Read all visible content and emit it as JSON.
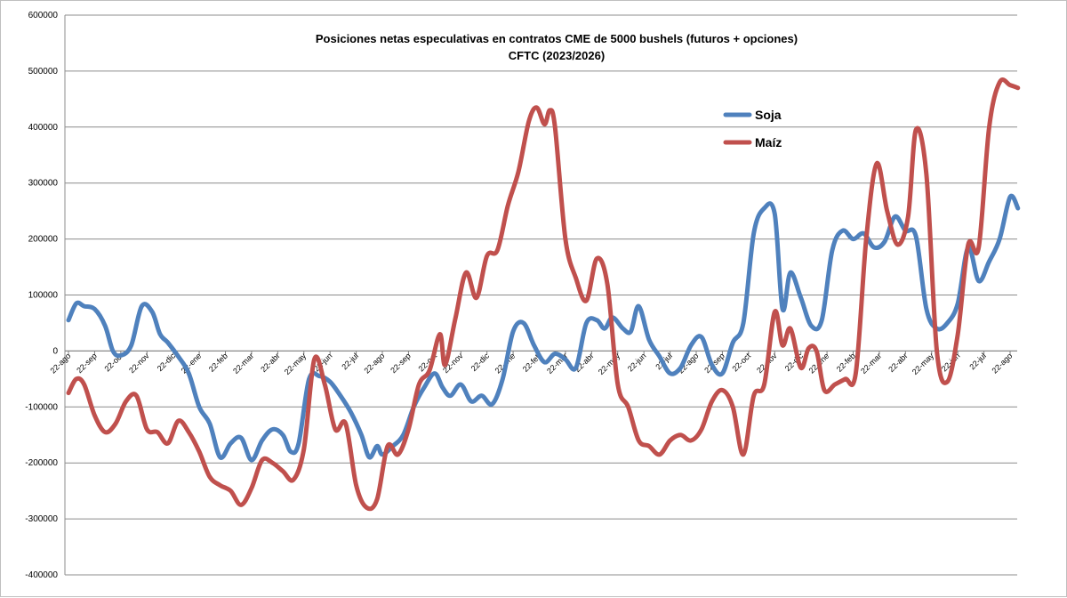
{
  "chart_data": {
    "type": "line",
    "title": "Posiciones netas especulativas en contratos CME de 5000 bushels (futuros + opciones)",
    "subtitle": "CFTC (2023/2026)",
    "xlabel": "",
    "ylabel": "",
    "ylim": [
      -400000,
      600000
    ],
    "yticks": [
      600000,
      500000,
      400000,
      300000,
      200000,
      100000,
      0,
      -100000,
      -200000,
      -300000,
      -400000
    ],
    "ytick_labels": [
      "600000",
      "500000",
      "400000",
      "300000",
      "200000",
      "100000",
      "0",
      "-100000",
      "-200000",
      "-300000",
      "-400000"
    ],
    "grid": true,
    "legend_position": "top-right",
    "x_tick_labels": [
      "22-ago",
      "22-sep",
      "22-oct",
      "22-nov",
      "22-dic",
      "22-ene",
      "22-feb",
      "22-mar",
      "22-abr",
      "22-may",
      "22-jun",
      "22-jul",
      "22-ago",
      "22-sep",
      "22-oct",
      "22-nov",
      "22-dic",
      "22-ene",
      "22-feb",
      "22-mar",
      "22-abr",
      "22-may",
      "22-jun",
      "22-jul",
      "22-ago",
      "22-sep",
      "22-oct",
      "22-nov",
      "22-dic",
      "22-ene",
      "22-feb",
      "22-mar",
      "22-abr",
      "22-may",
      "22-jun",
      "22-jul",
      "22-ago"
    ],
    "series": [
      {
        "name": "Soja",
        "color": "#4f81bd",
        "points": [
          [
            0,
            55000
          ],
          [
            0.3,
            85000
          ],
          [
            0.6,
            80000
          ],
          [
            1,
            75000
          ],
          [
            1.4,
            45000
          ],
          [
            1.7,
            0
          ],
          [
            2,
            -8000
          ],
          [
            2.4,
            10000
          ],
          [
            2.8,
            80000
          ],
          [
            3.2,
            70000
          ],
          [
            3.5,
            30000
          ],
          [
            3.8,
            15000
          ],
          [
            4.2,
            -10000
          ],
          [
            4.6,
            -40000
          ],
          [
            5,
            -100000
          ],
          [
            5.4,
            -130000
          ],
          [
            5.8,
            -190000
          ],
          [
            6.2,
            -165000
          ],
          [
            6.6,
            -155000
          ],
          [
            7,
            -195000
          ],
          [
            7.4,
            -160000
          ],
          [
            7.8,
            -140000
          ],
          [
            8.2,
            -150000
          ],
          [
            8.5,
            -180000
          ],
          [
            8.8,
            -165000
          ],
          [
            9.2,
            -50000
          ],
          [
            9.6,
            -45000
          ],
          [
            10,
            -55000
          ],
          [
            10.4,
            -80000
          ],
          [
            10.8,
            -110000
          ],
          [
            11.2,
            -150000
          ],
          [
            11.5,
            -190000
          ],
          [
            11.8,
            -170000
          ],
          [
            12,
            -185000
          ],
          [
            12.4,
            -170000
          ],
          [
            12.8,
            -150000
          ],
          [
            13.2,
            -100000
          ],
          [
            13.6,
            -65000
          ],
          [
            14,
            -40000
          ],
          [
            14.3,
            -65000
          ],
          [
            14.6,
            -80000
          ],
          [
            15,
            -60000
          ],
          [
            15.4,
            -90000
          ],
          [
            15.8,
            -80000
          ],
          [
            16.2,
            -95000
          ],
          [
            16.6,
            -50000
          ],
          [
            17,
            35000
          ],
          [
            17.4,
            50000
          ],
          [
            17.8,
            10000
          ],
          [
            18.2,
            -20000
          ],
          [
            18.6,
            -5000
          ],
          [
            19,
            -15000
          ],
          [
            19.4,
            -30000
          ],
          [
            19.8,
            50000
          ],
          [
            20.2,
            55000
          ],
          [
            20.5,
            40000
          ],
          [
            20.8,
            60000
          ],
          [
            21.2,
            40000
          ],
          [
            21.5,
            35000
          ],
          [
            21.8,
            80000
          ],
          [
            22.2,
            20000
          ],
          [
            22.6,
            -10000
          ],
          [
            23,
            -40000
          ],
          [
            23.4,
            -30000
          ],
          [
            23.8,
            10000
          ],
          [
            24.2,
            25000
          ],
          [
            24.6,
            -25000
          ],
          [
            25,
            -40000
          ],
          [
            25.4,
            15000
          ],
          [
            25.8,
            50000
          ],
          [
            26.2,
            210000
          ],
          [
            26.6,
            255000
          ],
          [
            27,
            245000
          ],
          [
            27.3,
            75000
          ],
          [
            27.6,
            140000
          ],
          [
            28,
            95000
          ],
          [
            28.4,
            45000
          ],
          [
            28.8,
            55000
          ],
          [
            29.2,
            180000
          ],
          [
            29.6,
            215000
          ],
          [
            30,
            200000
          ],
          [
            30.4,
            210000
          ],
          [
            30.8,
            185000
          ],
          [
            31.2,
            195000
          ],
          [
            31.6,
            240000
          ],
          [
            32,
            215000
          ],
          [
            32.4,
            205000
          ],
          [
            32.8,
            75000
          ],
          [
            33.2,
            40000
          ],
          [
            33.6,
            50000
          ],
          [
            34,
            85000
          ],
          [
            34.4,
            185000
          ],
          [
            34.8,
            125000
          ],
          [
            35.2,
            160000
          ],
          [
            35.6,
            200000
          ],
          [
            36,
            275000
          ],
          [
            36.3,
            255000
          ]
        ]
      },
      {
        "name": "Maíz",
        "color": "#c0504d",
        "points": [
          [
            0,
            -75000
          ],
          [
            0.3,
            -50000
          ],
          [
            0.6,
            -60000
          ],
          [
            1,
            -115000
          ],
          [
            1.4,
            -145000
          ],
          [
            1.8,
            -130000
          ],
          [
            2.2,
            -90000
          ],
          [
            2.6,
            -80000
          ],
          [
            3,
            -140000
          ],
          [
            3.4,
            -145000
          ],
          [
            3.8,
            -165000
          ],
          [
            4.2,
            -125000
          ],
          [
            4.6,
            -145000
          ],
          [
            5,
            -180000
          ],
          [
            5.4,
            -225000
          ],
          [
            5.8,
            -240000
          ],
          [
            6.2,
            -250000
          ],
          [
            6.6,
            -275000
          ],
          [
            7,
            -245000
          ],
          [
            7.4,
            -195000
          ],
          [
            7.8,
            -200000
          ],
          [
            8.2,
            -215000
          ],
          [
            8.6,
            -230000
          ],
          [
            9,
            -175000
          ],
          [
            9.4,
            -15000
          ],
          [
            9.8,
            -60000
          ],
          [
            10.2,
            -140000
          ],
          [
            10.6,
            -130000
          ],
          [
            11,
            -240000
          ],
          [
            11.4,
            -280000
          ],
          [
            11.8,
            -265000
          ],
          [
            12.2,
            -170000
          ],
          [
            12.6,
            -185000
          ],
          [
            13,
            -140000
          ],
          [
            13.4,
            -60000
          ],
          [
            13.8,
            -35000
          ],
          [
            14.2,
            30000
          ],
          [
            14.4,
            -25000
          ],
          [
            14.8,
            60000
          ],
          [
            15.2,
            140000
          ],
          [
            15.6,
            95000
          ],
          [
            16,
            170000
          ],
          [
            16.4,
            180000
          ],
          [
            16.8,
            260000
          ],
          [
            17.2,
            320000
          ],
          [
            17.6,
            410000
          ],
          [
            17.9,
            435000
          ],
          [
            18.2,
            405000
          ],
          [
            18.4,
            430000
          ],
          [
            18.6,
            400000
          ],
          [
            19,
            200000
          ],
          [
            19.4,
            130000
          ],
          [
            19.8,
            90000
          ],
          [
            20.2,
            165000
          ],
          [
            20.6,
            120000
          ],
          [
            21,
            -60000
          ],
          [
            21.4,
            -100000
          ],
          [
            21.8,
            -160000
          ],
          [
            22.2,
            -170000
          ],
          [
            22.6,
            -185000
          ],
          [
            23,
            -160000
          ],
          [
            23.4,
            -150000
          ],
          [
            23.8,
            -160000
          ],
          [
            24.2,
            -140000
          ],
          [
            24.6,
            -90000
          ],
          [
            25,
            -70000
          ],
          [
            25.4,
            -100000
          ],
          [
            25.8,
            -185000
          ],
          [
            26.2,
            -80000
          ],
          [
            26.6,
            -60000
          ],
          [
            27,
            70000
          ],
          [
            27.3,
            10000
          ],
          [
            27.6,
            40000
          ],
          [
            28,
            -30000
          ],
          [
            28.3,
            5000
          ],
          [
            28.6,
            0
          ],
          [
            28.9,
            -70000
          ],
          [
            29.3,
            -60000
          ],
          [
            29.7,
            -50000
          ],
          [
            30.1,
            -40000
          ],
          [
            30.5,
            200000
          ],
          [
            30.9,
            335000
          ],
          [
            31.3,
            250000
          ],
          [
            31.7,
            190000
          ],
          [
            32.1,
            240000
          ],
          [
            32.4,
            395000
          ],
          [
            32.8,
            315000
          ],
          [
            33.2,
            0
          ],
          [
            33.6,
            -55000
          ],
          [
            34,
            30000
          ],
          [
            34.4,
            190000
          ],
          [
            34.8,
            185000
          ],
          [
            35.2,
            400000
          ],
          [
            35.6,
            480000
          ],
          [
            36,
            475000
          ],
          [
            36.3,
            470000
          ]
        ]
      }
    ]
  }
}
